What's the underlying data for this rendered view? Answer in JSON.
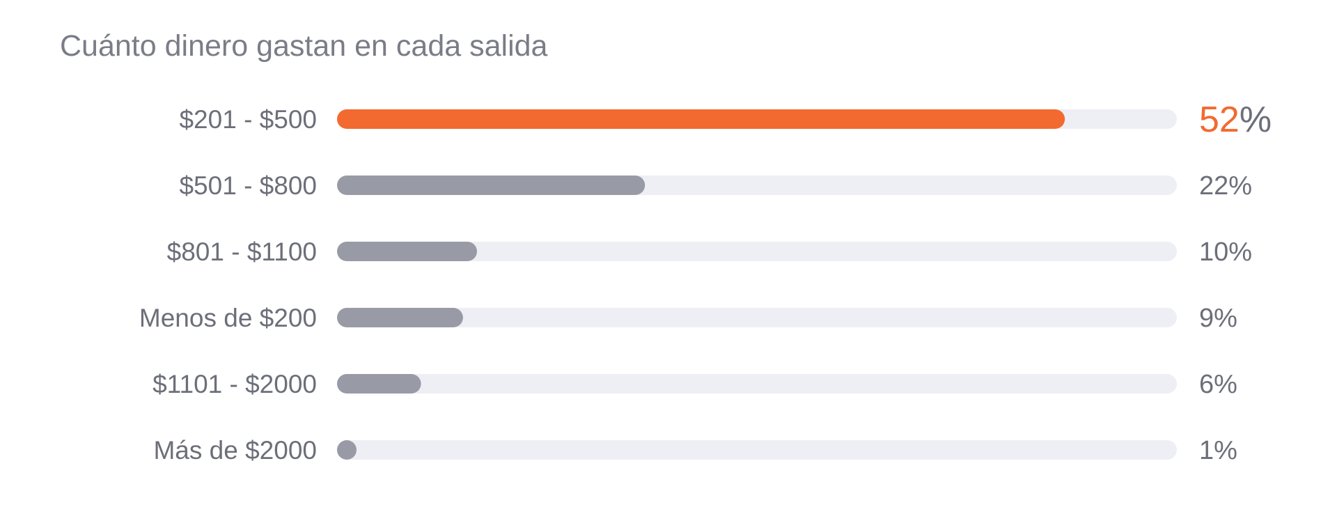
{
  "chart_data": {
    "type": "bar",
    "orientation": "horizontal",
    "title": "Cuánto dinero gastan en cada salida",
    "categories": [
      "$201 - $500",
      "$501 - $800",
      "$801 - $1100",
      "Menos de $200",
      "$1101 - $2000",
      "Más de $2000"
    ],
    "values": [
      52,
      22,
      10,
      9,
      6,
      1
    ],
    "value_labels": [
      "52",
      "22",
      "10",
      "9",
      "6",
      "1"
    ],
    "value_suffix": "%",
    "xlim": [
      0,
      60
    ],
    "grid": false,
    "legend": "none",
    "colors": {
      "highlight": "#f26a30",
      "bar": "#989ba6",
      "track": "#eeeff4",
      "text": "#6c6f79"
    }
  }
}
